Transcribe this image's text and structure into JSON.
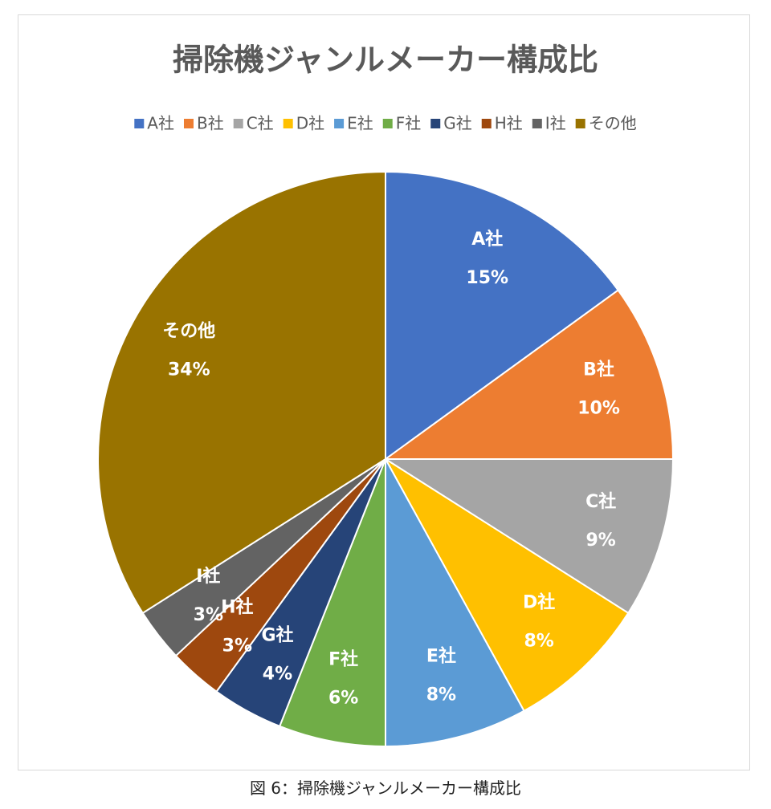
{
  "chart_data": {
    "type": "pie",
    "title": "掃除機ジャンルメーカー構成比",
    "categories": [
      "A社",
      "B社",
      "C社",
      "D社",
      "E社",
      "F社",
      "G社",
      "H社",
      "I社",
      "その他"
    ],
    "values": [
      15,
      10,
      9,
      8,
      8,
      6,
      4,
      3,
      3,
      34
    ],
    "value_labels": [
      "15%",
      "10%",
      "9%",
      "8%",
      "8%",
      "6%",
      "4%",
      "3%",
      "3%",
      "34%"
    ],
    "colors": [
      "#4472c4",
      "#ed7d31",
      "#a5a5a5",
      "#ffc000",
      "#5b9bd5",
      "#70ad47",
      "#264478",
      "#9e480e",
      "#636363",
      "#997300"
    ],
    "legend": "top"
  },
  "caption": "図 6：掃除機ジャンルメーカー構成比"
}
